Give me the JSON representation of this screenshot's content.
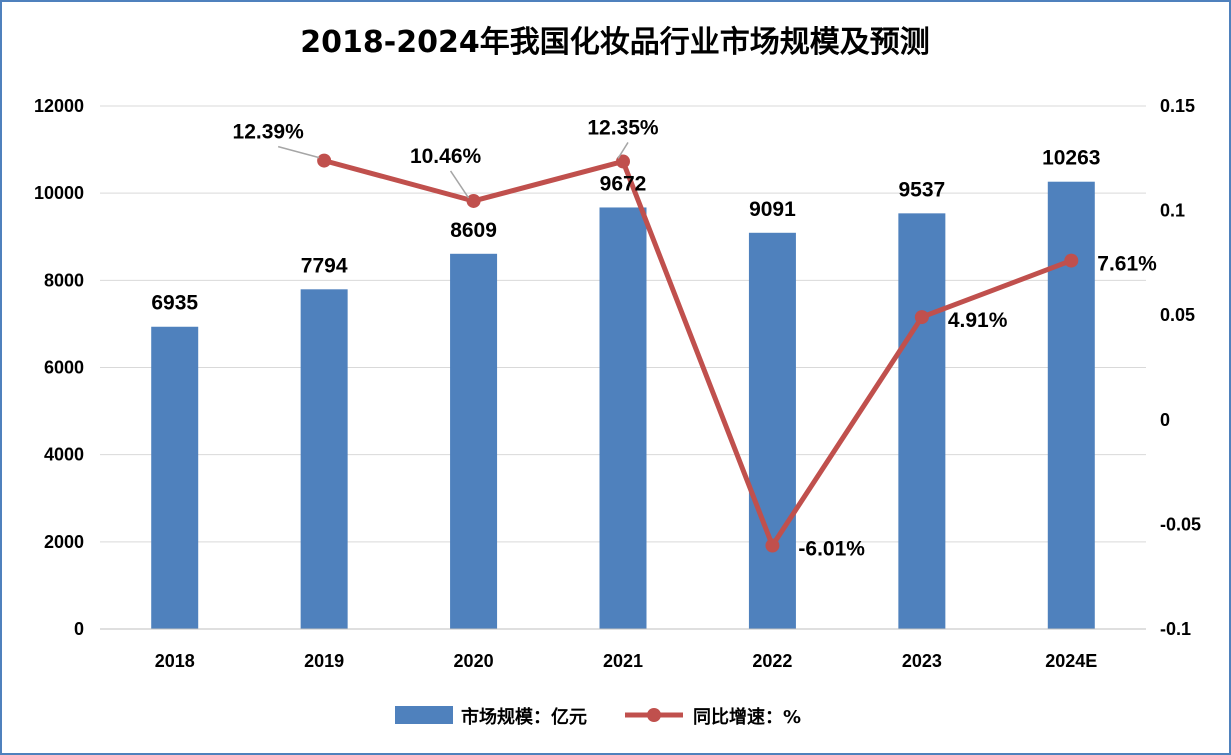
{
  "chart_data": {
    "type": "bar",
    "title": "2018-2024年我国化妆品行业市场规模及预测",
    "categories": [
      "2018",
      "2019",
      "2020",
      "2021",
      "2022",
      "2023",
      "2024E"
    ],
    "series": [
      {
        "name": "市场规模：亿元",
        "type": "bar",
        "axis": "left",
        "values": [
          6935,
          7794,
          8609,
          9672,
          9091,
          9537,
          10263
        ],
        "labels": [
          "6935",
          "7794",
          "8609",
          "9672",
          "9091",
          "9537",
          "10263"
        ]
      },
      {
        "name": "同比增速：%",
        "type": "line",
        "axis": "right",
        "values": [
          null,
          0.1239,
          0.1046,
          0.1235,
          -0.0601,
          0.0491,
          0.0761
        ],
        "labels": [
          "",
          "12.39%",
          "10.46%",
          "12.35%",
          "-6.01%",
          "4.91%",
          "7.61%"
        ]
      }
    ],
    "y_left": {
      "min": 0,
      "max": 12000,
      "step": 2000,
      "ticks": [
        "0",
        "2000",
        "4000",
        "6000",
        "8000",
        "10000",
        "12000"
      ]
    },
    "y_right": {
      "min": -0.1,
      "max": 0.15,
      "step": 0.05,
      "ticks": [
        "-0.1",
        "-0.05",
        "0",
        "0.05",
        "0.1",
        "0.15"
      ]
    },
    "grid": true,
    "legend_position": "bottom",
    "colors": {
      "bar": "#4f81bd",
      "line": "#c0504d",
      "grid": "#d9d9d9",
      "border": "#4f81bd"
    }
  }
}
